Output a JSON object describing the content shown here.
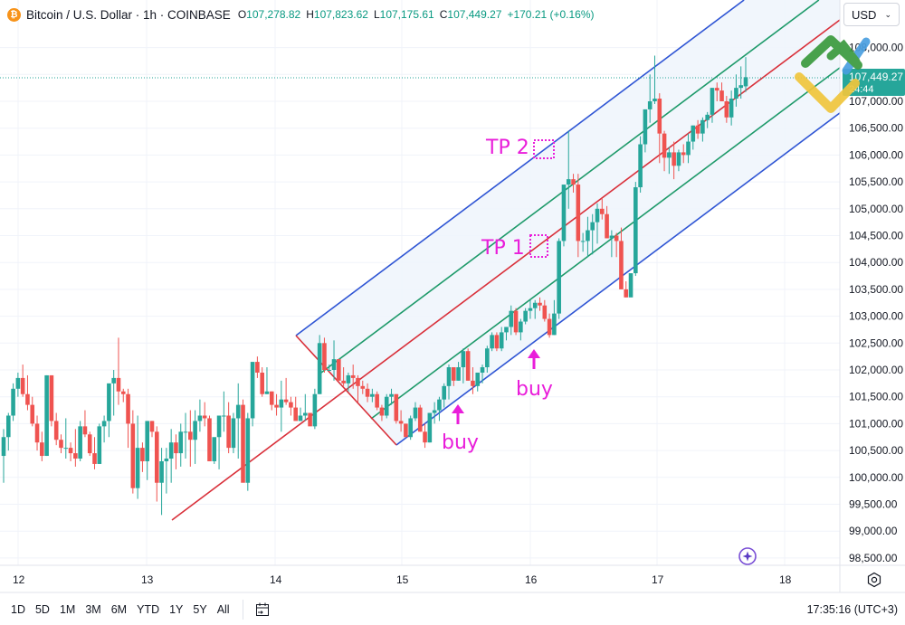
{
  "header": {
    "symbol_icon": "bitcoin-icon",
    "symbol_icon_glyph": "₿",
    "title": "Bitcoin / U.S. Dollar · 1h · COINBASE",
    "ohlc": {
      "o_label": "O",
      "o": "107,278.82",
      "h_label": "H",
      "h": "107,823.62",
      "l_label": "L",
      "l": "107,175.61",
      "c_label": "C",
      "c": "107,449.27",
      "change": "+170.21 (+0.16%)"
    }
  },
  "currency": {
    "label": "USD",
    "chevron": "⌄"
  },
  "price_axis": {
    "labels": [
      "107,000.00",
      "106,500.00",
      "106,000.00",
      "105,500.00",
      "105,000.00",
      "104,500.00",
      "104,000.00",
      "103,500.00",
      "103,000.00",
      "102,500.00",
      "102,000.00",
      "101,500.00",
      "101,000.00",
      "100,500.00",
      "100,000.00",
      "99,500.00",
      "99,000.00",
      "98,500.00"
    ],
    "top_partial_label": "1",
    "current_price_label": "107,449.27",
    "countdown_label": "24:44",
    "current_price_color": "#26a69a"
  },
  "time_axis": {
    "labels": [
      "12",
      "13",
      "14",
      "15",
      "16",
      "17",
      "18"
    ]
  },
  "bottom_bar": {
    "ranges": [
      "1D",
      "5D",
      "1M",
      "3M",
      "6M",
      "YTD",
      "1Y",
      "5Y",
      "All"
    ],
    "goto_date_icon": "calendar-goto-icon",
    "clock": "17:35:16 (UTC+3)"
  },
  "annotations": {
    "tp2": "TP 2",
    "tp1": "TP 1",
    "buy1": "buy",
    "buy2": "buy",
    "color": "#e91eda"
  },
  "colors": {
    "up": "#26a69a",
    "down": "#ef5350",
    "channel_outer": "#2f55d4",
    "channel_inner": "#1e9a6a",
    "channel_median": "#d9303a",
    "channel_fill": "#eef4fb"
  },
  "chart_data": {
    "type": "candlestick",
    "title": "Bitcoin / U.S. Dollar · 1h · COINBASE",
    "xlabel": "",
    "ylabel": "USD",
    "ylim": [
      98300,
      108900
    ],
    "x_ticks": [
      "12",
      "13",
      "14",
      "15",
      "16",
      "17",
      "18"
    ],
    "y_ticks": [
      98500,
      99000,
      99500,
      100000,
      100500,
      101000,
      101500,
      102000,
      102500,
      103000,
      103500,
      104000,
      104500,
      105000,
      105500,
      106000,
      106500,
      107000,
      107500,
      108000
    ],
    "last": {
      "open": 107278.82,
      "high": 107823.62,
      "low": 107175.61,
      "close": 107449.27,
      "change": 170.21,
      "change_pct": 0.16
    },
    "indicator": "Pitchfork / ascending channel with median (red), inner (green) and outer (blue) lines",
    "channel": {
      "anchor_points": [
        {
          "date": "13.2",
          "price": 99200
        },
        {
          "date": "14.2",
          "price": 102650
        },
        {
          "date": "15.0",
          "price": 100600
        }
      ],
      "median_end_price": 108000
    },
    "annotations": [
      {
        "text": "TP 2",
        "price": 106100,
        "x": "16.1"
      },
      {
        "text": "TP 1",
        "price": 104300,
        "x": "16.05"
      },
      {
        "text": "buy",
        "price": 101300,
        "x": "15.45",
        "arrow": "up"
      },
      {
        "text": "buy",
        "price": 102300,
        "x": "16.05",
        "arrow": "up"
      }
    ],
    "candles_ohlc_approx": [
      [
        100400,
        100900,
        99900,
        100750
      ],
      [
        100750,
        101200,
        100500,
        101150
      ],
      [
        101150,
        101750,
        101050,
        101650
      ],
      [
        101650,
        101950,
        101500,
        101850
      ],
      [
        101850,
        102100,
        101500,
        101550
      ],
      [
        101550,
        101900,
        101250,
        101350
      ],
      [
        101350,
        101500,
        100950,
        101000
      ],
      [
        101000,
        101150,
        100500,
        100650
      ],
      [
        100650,
        100850,
        100300,
        100400
      ],
      [
        100400,
        101900,
        100400,
        101900
      ],
      [
        101900,
        101900,
        100950,
        101050
      ],
      [
        101050,
        101200,
        100600,
        100700
      ],
      [
        100700,
        100800,
        100450,
        100550
      ],
      [
        100550,
        101100,
        100350,
        100550
      ],
      [
        100550,
        100650,
        100300,
        100450
      ],
      [
        100450,
        100900,
        100200,
        100350
      ],
      [
        100350,
        101050,
        100300,
        100950
      ],
      [
        100950,
        101250,
        100750,
        100800
      ],
      [
        100800,
        100850,
        100400,
        100450
      ],
      [
        100450,
        100750,
        100150,
        100250
      ],
      [
        100250,
        101000,
        100250,
        100950
      ],
      [
        100950,
        101150,
        100650,
        101050
      ],
      [
        101050,
        101700,
        100750,
        101750
      ],
      [
        101750,
        102000,
        101150,
        101850
      ],
      [
        101850,
        102600,
        101350,
        101600
      ],
      [
        101600,
        101650,
        101400,
        101550
      ],
      [
        101550,
        101650,
        100550,
        101000
      ],
      [
        101000,
        101250,
        99700,
        99800
      ],
      [
        99800,
        101150,
        99600,
        100550
      ],
      [
        100550,
        100650,
        100100,
        100300
      ],
      [
        100300,
        101050,
        99950,
        101050
      ],
      [
        101050,
        101050,
        100750,
        100850
      ],
      [
        100850,
        100950,
        99550,
        99900
      ],
      [
        99900,
        100550,
        99300,
        100300
      ],
      [
        100300,
        100550,
        99700,
        100350
      ],
      [
        100350,
        100900,
        99900,
        100650
      ],
      [
        100650,
        100800,
        100150,
        100450
      ],
      [
        100450,
        101000,
        100200,
        100850
      ],
      [
        100850,
        101200,
        100350,
        100850
      ],
      [
        100850,
        101250,
        100200,
        100700
      ],
      [
        100700,
        101250,
        100250,
        101050
      ],
      [
        101050,
        101450,
        100850,
        101150
      ],
      [
        101150,
        101400,
        100950,
        101100
      ],
      [
        101100,
        101150,
        100550,
        100300
      ],
      [
        100300,
        100550,
        100250,
        100750
      ],
      [
        100750,
        101150,
        100150,
        101150
      ],
      [
        101150,
        101600,
        100850,
        101150
      ],
      [
        101150,
        101400,
        100450,
        100550
      ],
      [
        100550,
        101200,
        100450,
        101100
      ],
      [
        101100,
        101750,
        100350,
        101350
      ],
      [
        101350,
        101450,
        100200,
        99900
      ],
      [
        99900,
        101200,
        99750,
        101100
      ],
      [
        101100,
        102100,
        100950,
        102150
      ],
      [
        102150,
        102250,
        101850,
        101950
      ],
      [
        101950,
        102050,
        101500,
        101550
      ],
      [
        101550,
        102050,
        101550,
        101600
      ],
      [
        101600,
        101600,
        101250,
        101350
      ],
      [
        101350,
        101550,
        101150,
        101300
      ],
      [
        101300,
        101800,
        100850,
        101450
      ],
      [
        101450,
        101850,
        101350,
        101400
      ],
      [
        101400,
        101500,
        101150,
        101300
      ],
      [
        101300,
        101500,
        101150,
        101050
      ],
      [
        101050,
        101300,
        101050,
        101150
      ],
      [
        101150,
        101550,
        101050,
        101200
      ],
      [
        101200,
        101200,
        101000,
        100950
      ],
      [
        100950,
        101650,
        100900,
        101550
      ],
      [
        101550,
        102650,
        101550,
        102500
      ],
      [
        102500,
        102600,
        101950,
        102000
      ],
      [
        102000,
        102100,
        102000,
        102000
      ],
      [
        102000,
        102550,
        101800,
        102200
      ],
      [
        102200,
        102200,
        101850,
        101800
      ],
      [
        101800,
        102050,
        101700,
        101750
      ],
      [
        101750,
        101950,
        101600,
        101900
      ],
      [
        101900,
        102100,
        101650,
        101850
      ],
      [
        101850,
        101900,
        101400,
        101700
      ],
      [
        101700,
        101800,
        101550,
        101650
      ],
      [
        101650,
        101750,
        101400,
        101500
      ],
      [
        101500,
        101650,
        101400,
        101550
      ],
      [
        101550,
        101600,
        101250,
        101300
      ],
      [
        101300,
        101350,
        101050,
        101150
      ],
      [
        101150,
        101550,
        101100,
        101500
      ],
      [
        101500,
        101650,
        101350,
        101550
      ],
      [
        101550,
        101550,
        101000,
        101050
      ],
      [
        101050,
        101250,
        100850,
        101000
      ],
      [
        101000,
        101000,
        100900,
        100750
      ],
      [
        100750,
        101150,
        100700,
        101100
      ],
      [
        101100,
        101400,
        101050,
        101300
      ],
      [
        101300,
        101350,
        100850,
        100850
      ],
      [
        100850,
        101000,
        100550,
        100650
      ],
      [
        100650,
        101200,
        100650,
        101200
      ],
      [
        101200,
        101400,
        101000,
        101250
      ],
      [
        101250,
        101500,
        101050,
        101450
      ],
      [
        101450,
        101750,
        101300,
        101700
      ],
      [
        101700,
        102100,
        101450,
        102050
      ],
      [
        102050,
        102000,
        101700,
        101800
      ],
      [
        101800,
        102150,
        101800,
        102050
      ],
      [
        102050,
        102400,
        101750,
        102350
      ],
      [
        102350,
        102400,
        101800,
        101800
      ],
      [
        101800,
        102050,
        101550,
        101700
      ],
      [
        101700,
        101850,
        101600,
        101950
      ],
      [
        101950,
        102100,
        101750,
        102050
      ],
      [
        102050,
        102450,
        101950,
        102400
      ],
      [
        102400,
        102700,
        102350,
        102650
      ],
      [
        102650,
        102700,
        102350,
        102400
      ],
      [
        102400,
        102800,
        102350,
        102700
      ],
      [
        102700,
        102800,
        102550,
        102800
      ],
      [
        102800,
        103200,
        102650,
        103100
      ],
      [
        103100,
        103150,
        102650,
        102700
      ],
      [
        102700,
        102950,
        102550,
        102900
      ],
      [
        102900,
        103150,
        102850,
        103100
      ],
      [
        103100,
        103300,
        102950,
        103150
      ],
      [
        103150,
        103300,
        102950,
        103250
      ],
      [
        103250,
        103350,
        103100,
        103200
      ],
      [
        103200,
        103300,
        102900,
        102950
      ],
      [
        102950,
        103050,
        102600,
        102650
      ],
      [
        102650,
        103300,
        102650,
        103050
      ],
      [
        103050,
        104450,
        102950,
        104400
      ],
      [
        104400,
        105300,
        104300,
        105450
      ],
      [
        105450,
        106450,
        105000,
        105550
      ],
      [
        105550,
        105650,
        105300,
        105450
      ],
      [
        105450,
        105650,
        104100,
        104400
      ],
      [
        104400,
        104550,
        104200,
        104400
      ],
      [
        104400,
        104850,
        104100,
        104600
      ],
      [
        104600,
        104900,
        104150,
        104750
      ],
      [
        104750,
        105100,
        104350,
        105000
      ],
      [
        105000,
        105200,
        104800,
        104900
      ],
      [
        104900,
        105050,
        104450,
        104450
      ],
      [
        104450,
        104600,
        104100,
        104500
      ],
      [
        104500,
        104550,
        104100,
        104400
      ],
      [
        104400,
        104650,
        103750,
        103500
      ],
      [
        103500,
        103650,
        103350,
        103350
      ],
      [
        103350,
        103650,
        103400,
        103800
      ],
      [
        103800,
        105500,
        103750,
        105400
      ],
      [
        105400,
        106350,
        105300,
        106200
      ],
      [
        106200,
        106800,
        106050,
        106850
      ],
      [
        106850,
        107500,
        106600,
        107000
      ],
      [
        107000,
        107850,
        106950,
        107050
      ],
      [
        107050,
        107150,
        105850,
        106400
      ],
      [
        106400,
        106450,
        105700,
        105950
      ],
      [
        105950,
        106150,
        105650,
        106050
      ],
      [
        106050,
        106250,
        105550,
        105800
      ],
      [
        105800,
        106100,
        105700,
        106050
      ],
      [
        106050,
        106200,
        105850,
        106000
      ],
      [
        106000,
        106400,
        105850,
        106250
      ],
      [
        106250,
        106550,
        106100,
        106550
      ],
      [
        106550,
        106650,
        106300,
        106400
      ],
      [
        106400,
        106700,
        106250,
        106650
      ],
      [
        106650,
        106800,
        106500,
        106750
      ],
      [
        106750,
        107250,
        106600,
        107250
      ],
      [
        107250,
        107350,
        107000,
        107200
      ],
      [
        107200,
        107350,
        107050,
        107000
      ],
      [
        107000,
        107100,
        106600,
        106700
      ],
      [
        106700,
        107200,
        106550,
        107050
      ],
      [
        107050,
        107500,
        106900,
        107250
      ],
      [
        107250,
        107650,
        107050,
        107300
      ],
      [
        107278.82,
        107823.62,
        107175.61,
        107449.27
      ]
    ]
  }
}
